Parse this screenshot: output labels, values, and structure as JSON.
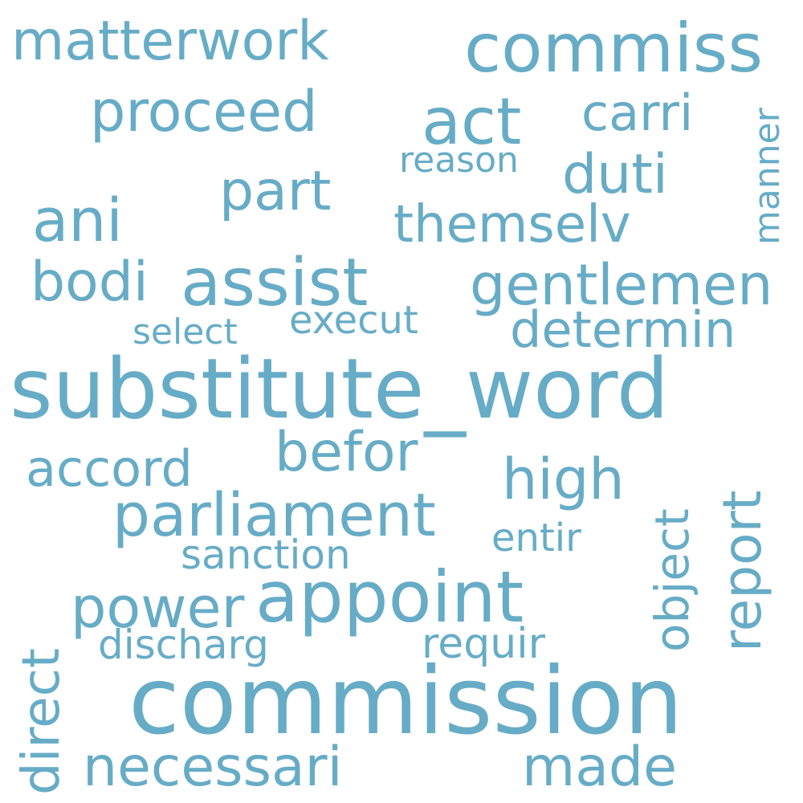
{
  "word_cloud": {
    "color": "#67acc6",
    "background": "#ffffff",
    "words": {
      "substitute_word": "substitute_word",
      "commission": "commission",
      "commiss": "commiss",
      "act": "act",
      "matterwork": "matterwork",
      "proceed": "proceed",
      "carri": "carri",
      "manner": "manner",
      "reason": "reason",
      "duti": "duti",
      "part": "part",
      "ani": "ani",
      "themselv": "themselv",
      "bodi": "bodi",
      "assist": "assist",
      "gentlemen": "gentlemen",
      "select": "select",
      "execut": "execut",
      "determin": "determin",
      "befor": "befor",
      "accord": "accord",
      "high": "high",
      "object": "object",
      "report": "report",
      "parliament": "parliament",
      "entir": "entir",
      "sanction": "sanction",
      "direct": "direct",
      "power": "power",
      "appoint": "appoint",
      "discharg": "discharg",
      "requir": "requir",
      "necessari": "necessari",
      "made": "made"
    }
  }
}
